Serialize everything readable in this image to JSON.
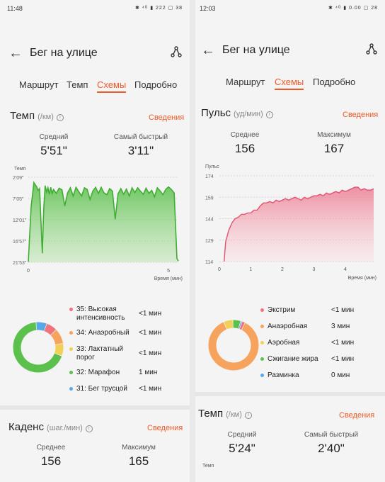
{
  "left": {
    "status_time": "11:48",
    "status_icons": "✱ ⁴ᴳ ▮ 222 ▢ 38",
    "title": "Бег на улице",
    "tabs": [
      "Маршрут",
      "Темп",
      "Схемы",
      "Подробно"
    ],
    "active_tab": 2,
    "pace": {
      "title": "Темп",
      "unit": "(/км)",
      "details": "Сведения",
      "avg_label": "Средний",
      "avg_value": "5'51\"",
      "best_label": "Самый быстрый",
      "best_value": "3'11\""
    },
    "zones": [
      {
        "name": "35: Высокая интенсивность",
        "line1": "35: Высокая",
        "line2": "интенсивность",
        "dur": "<1 мин",
        "color": "#f0727c",
        "share": 0.07
      },
      {
        "name": "34: Анаэробный",
        "line1": "34: Анаэробный",
        "line2": "",
        "dur": "<1 мин",
        "color": "#f6a35d",
        "share": 0.1
      },
      {
        "name": "33: Лактатный порог",
        "line1": "33: Лактатный",
        "line2": "порог",
        "dur": "<1 мин",
        "color": "#f2cf58",
        "share": 0.08
      },
      {
        "name": "32: Марафон",
        "line1": "32: Марафон",
        "line2": "",
        "dur": "1 мин",
        "color": "#5cc04d",
        "share": 0.68
      },
      {
        "name": "31: Бег трусцой",
        "line1": "31: Бег трусцой",
        "line2": "",
        "dur": "<1 мин",
        "color": "#57a8e8",
        "share": 0.07
      }
    ],
    "cadence": {
      "title": "Каденс",
      "unit": "(шаг./мин)",
      "details": "Сведения",
      "avg_label": "Среднее",
      "avg_value": "156",
      "max_label": "Максимум",
      "max_value": "165"
    }
  },
  "right": {
    "status_time": "12:03",
    "status_icons": "✱ ⁴ᴳ ▮ 0.00 ▢ 28",
    "title": "Бег на улице",
    "tabs": [
      "Маршрут",
      "Схемы",
      "Подробно"
    ],
    "active_tab": 1,
    "hr": {
      "title": "Пульс",
      "unit": "(уд/мин)",
      "details": "Сведения",
      "avg_label": "Среднее",
      "avg_value": "156",
      "max_label": "Максимум",
      "max_value": "167"
    },
    "zones": [
      {
        "name": "Экстрим",
        "dur": "<1 мин",
        "color": "#f0727c",
        "share": 0.02
      },
      {
        "name": "Анаэробная",
        "dur": "3 мин",
        "color": "#f6a35d",
        "share": 0.86
      },
      {
        "name": "Аэробная",
        "dur": "<1 мин",
        "color": "#f2cf58",
        "share": 0.06
      },
      {
        "name": "Сжигание жира",
        "dur": "<1 мин",
        "color": "#5cc04d",
        "share": 0.05
      },
      {
        "name": "Разминка",
        "dur": "0 мин",
        "color": "#57a8e8",
        "share": 0.01
      }
    ],
    "pace": {
      "title": "Темп",
      "unit": "(/км)",
      "details": "Сведения",
      "avg_label": "Средний",
      "avg_value": "5'24\"",
      "best_label": "Самый быстрый",
      "best_value": "2'40\"",
      "chart_ylabel": "Темп"
    }
  },
  "chart_data": [
    {
      "type": "area",
      "ylabel": "Темп",
      "xlabel": "Время (мин)",
      "y_ticks": [
        "2'09\"",
        "7'05\"",
        "12'01\"",
        "16'57\"",
        "21'53\""
      ],
      "x_ticks": [
        "0",
        "5"
      ],
      "y_inverted": true,
      "series": [
        {
          "color": "#5cc04d",
          "x": [
            0.0,
            0.1,
            0.2,
            0.3,
            0.35,
            0.4,
            0.5,
            0.55,
            0.6,
            0.65,
            0.7,
            0.75,
            0.8,
            0.85,
            0.9,
            1.0,
            1.1,
            1.2,
            1.3,
            1.4,
            1.5,
            1.6,
            1.7,
            1.8,
            1.9,
            2.0,
            2.1,
            2.2,
            2.3,
            2.4,
            2.5,
            2.6,
            2.7,
            2.8,
            2.9,
            3.0,
            3.1,
            3.2,
            3.3,
            3.4,
            3.5,
            3.6,
            3.7,
            3.8,
            3.9,
            4.0,
            4.1,
            4.2,
            4.3,
            4.4,
            4.5,
            4.6,
            4.7,
            4.8,
            4.9,
            5.0,
            5.1,
            5.2,
            5.3,
            5.35
          ],
          "y": [
            21.8,
            9.0,
            3.4,
            4.4,
            5.2,
            4.8,
            19.8,
            9.5,
            4.1,
            5.6,
            4.6,
            6.1,
            4.5,
            5.9,
            5.0,
            5.9,
            4.7,
            5.1,
            8.8,
            5.8,
            4.6,
            6.5,
            4.5,
            5.5,
            6.5,
            4.6,
            5.0,
            7.3,
            5.4,
            4.5,
            5.9,
            4.5,
            5.8,
            6.2,
            4.8,
            5.4,
            11.9,
            6.0,
            4.8,
            6.1,
            4.9,
            6.5,
            4.6,
            5.7,
            4.6,
            5.4,
            6.1,
            4.7,
            5.9,
            5.2,
            6.7,
            4.6,
            5.3,
            6.2,
            5.0,
            4.4,
            5.0,
            5.8,
            21.0,
            21.6
          ]
        }
      ]
    },
    {
      "type": "area",
      "ylabel": "Пульс",
      "xlabel": "Время (мин)",
      "y_ticks": [
        114,
        129,
        144,
        159,
        174
      ],
      "ylim": [
        114,
        174
      ],
      "x_ticks": [
        "0",
        "1",
        "2",
        "3",
        "4"
      ],
      "xlim": [
        0,
        4.9
      ],
      "series": [
        {
          "color": "#e8647c",
          "x": [
            0.15,
            0.2,
            0.3,
            0.4,
            0.5,
            0.6,
            0.7,
            0.8,
            0.9,
            1.0,
            1.1,
            1.2,
            1.3,
            1.4,
            1.5,
            1.6,
            1.7,
            1.8,
            1.9,
            2.0,
            2.1,
            2.2,
            2.3,
            2.4,
            2.5,
            2.6,
            2.7,
            2.8,
            2.9,
            3.0,
            3.1,
            3.2,
            3.3,
            3.4,
            3.5,
            3.6,
            3.7,
            3.8,
            3.9,
            4.0,
            4.1,
            4.2,
            4.3,
            4.4,
            4.5,
            4.6,
            4.7,
            4.8,
            4.9
          ],
          "y": [
            114,
            128,
            136,
            141,
            144,
            145,
            147,
            147,
            148,
            148,
            150,
            150,
            153,
            155,
            155,
            156,
            155,
            157,
            156,
            157,
            158,
            157,
            158,
            159,
            158,
            157,
            159,
            158,
            159,
            160,
            160,
            161,
            160,
            162,
            161,
            162,
            163,
            162,
            164,
            163,
            164,
            165,
            166,
            166,
            164,
            165,
            164,
            164,
            165
          ]
        }
      ]
    },
    {
      "type": "pie",
      "categories": [
        "35: Высокая интенсивность",
        "34: Анаэробный",
        "33: Лактатный порог",
        "32: Марафон",
        "31: Бег трусцой"
      ],
      "values": [
        0.07,
        0.1,
        0.08,
        0.68,
        0.07
      ]
    },
    {
      "type": "pie",
      "categories": [
        "Экстрим",
        "Анаэробная",
        "Аэробная",
        "Сжигание жира",
        "Разминка"
      ],
      "values": [
        0.02,
        0.86,
        0.06,
        0.05,
        0.01
      ]
    }
  ]
}
